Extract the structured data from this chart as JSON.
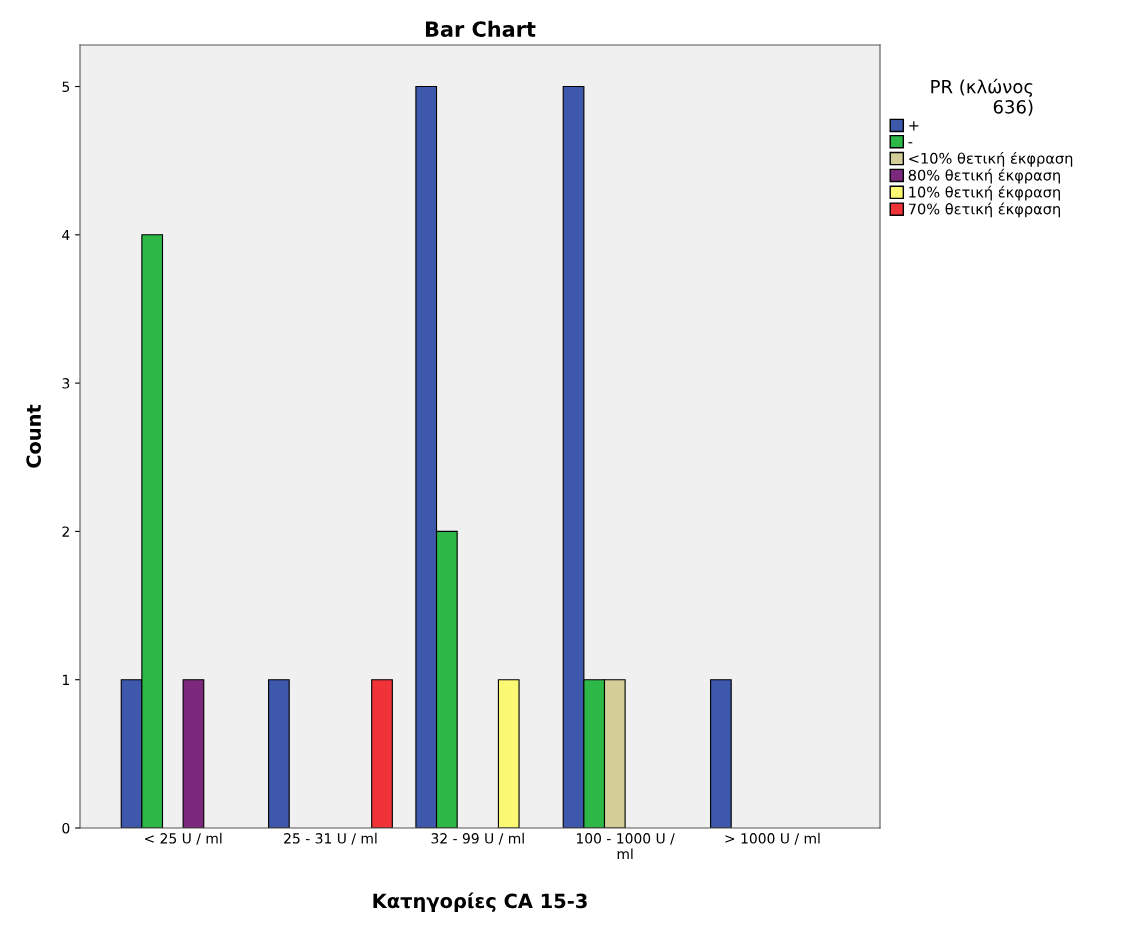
{
  "chart_data": {
    "type": "bar",
    "title": "Bar Chart",
    "xlabel": "Κατηγορίες CA 15-3",
    "ylabel": "Count",
    "legend_title": "PR (κλώνος\n636)",
    "categories": [
      "< 25 U / ml",
      "25 - 31 U / ml",
      "32 - 99 U / ml",
      "100 - 1000 U /\nml",
      "> 1000 U / ml"
    ],
    "series": [
      {
        "name": "+",
        "color": "#3e58ac",
        "values": [
          1,
          1,
          5,
          5,
          1
        ]
      },
      {
        "name": "-",
        "color": "#2eb848",
        "values": [
          4,
          0,
          2,
          1,
          0
        ]
      },
      {
        "name": "<10% θετική έκφραση",
        "color": "#d3ce97",
        "values": [
          0,
          0,
          0,
          1,
          0
        ]
      },
      {
        "name": "80% θετική έκφραση",
        "color": "#7c287d",
        "values": [
          1,
          0,
          0,
          0,
          0
        ]
      },
      {
        "name": "10% θετική έκφραση",
        "color": "#fbf873",
        "values": [
          0,
          0,
          1,
          0,
          0
        ]
      },
      {
        "name": "70% θετική έκφραση",
        "color": "#ef3338",
        "values": [
          0,
          1,
          0,
          0,
          0
        ]
      }
    ],
    "ylim": [
      0,
      5.28
    ],
    "yticks": [
      0,
      1,
      2,
      3,
      4,
      5
    ],
    "legend": "top right"
  }
}
